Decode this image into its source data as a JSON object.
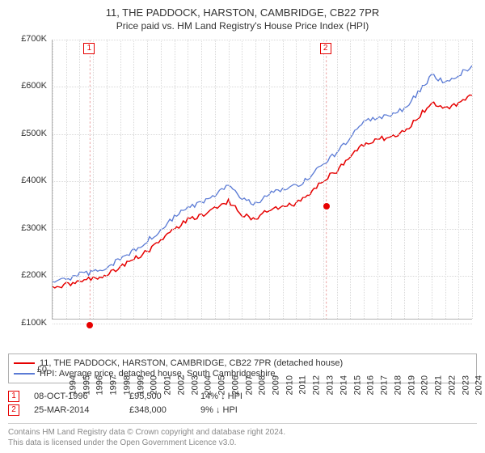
{
  "title": "11, THE PADDOCK, HARSTON, CAMBRIDGE, CB22 7PR",
  "subtitle": "Price paid vs. HM Land Registry's House Price Index (HPI)",
  "chart": {
    "type": "line",
    "background_color": "#ffffff",
    "grid_color": "#d8d8d8",
    "axis_color": "#b0b0b0",
    "x_years": [
      1994,
      1995,
      1996,
      1997,
      1998,
      1999,
      2000,
      2001,
      2002,
      2003,
      2004,
      2005,
      2006,
      2007,
      2008,
      2009,
      2010,
      2011,
      2012,
      2013,
      2014,
      2015,
      2016,
      2017,
      2018,
      2019,
      2020,
      2021,
      2022,
      2023,
      2024,
      2025
    ],
    "ylim": [
      0,
      700000
    ],
    "ytick_step": 100000,
    "yticks_fmt": [
      "£0",
      "£100K",
      "£200K",
      "£300K",
      "£400K",
      "£500K",
      "£600K",
      "£700K"
    ],
    "series": [
      {
        "id": "price_paid",
        "label": "11, THE PADDOCK, HARSTON, CAMBRIDGE, CB22 7PR (detached house)",
        "color": "#e60000",
        "line_width": 1.6,
        "years": [
          1994,
          1995,
          1996,
          1997,
          1998,
          1999,
          2000,
          2001,
          2002,
          2003,
          2004,
          2005,
          2006,
          2007,
          2008,
          2009,
          2010,
          2011,
          2012,
          2013,
          2014,
          2015,
          2016,
          2017,
          2018,
          2019,
          2020,
          2021,
          2022,
          2023,
          2024,
          2025
        ],
        "values": [
          80000,
          85000,
          95000,
          100000,
          112000,
          128000,
          150000,
          168000,
          198000,
          225000,
          248000,
          260000,
          278000,
          295000,
          260000,
          250000,
          275000,
          278000,
          290000,
          310000,
          348000,
          370000,
          410000,
          438000,
          450000,
          455000,
          470000,
          505000,
          542000,
          528000,
          540000,
          560000
        ]
      },
      {
        "id": "hpi",
        "label": "HPI: Average price, detached house, South Cambridgeshire",
        "color": "#5b7bd5",
        "line_width": 1.4,
        "years": [
          1994,
          1995,
          1996,
          1997,
          1998,
          1999,
          2000,
          2001,
          2002,
          2003,
          2004,
          2005,
          2006,
          2007,
          2008,
          2009,
          2010,
          2011,
          2012,
          2013,
          2014,
          2015,
          2016,
          2017,
          2018,
          2019,
          2020,
          2021,
          2022,
          2023,
          2024,
          2025
        ],
        "values": [
          92000,
          96000,
          110000,
          118000,
          130000,
          148000,
          172000,
          195000,
          225000,
          255000,
          280000,
          292000,
          312000,
          335000,
          300000,
          288000,
          318000,
          322000,
          332000,
          355000,
          388000,
          415000,
          455000,
          492000,
          505000,
          512000,
          528000,
          568000,
          610000,
          595000,
          610000,
          635000
        ]
      }
    ],
    "sale_markers": [
      {
        "num": "1",
        "year": 1996.77,
        "price": 95500
      },
      {
        "num": "2",
        "year": 2014.23,
        "price": 348000
      }
    ]
  },
  "legend": [
    {
      "color": "#e60000",
      "label": "11, THE PADDOCK, HARSTON, CAMBRIDGE, CB22 7PR (detached house)"
    },
    {
      "color": "#5b7bd5",
      "label": "HPI: Average price, detached house, South Cambridgeshire"
    }
  ],
  "sales": [
    {
      "num": "1",
      "date": "08-OCT-1996",
      "price": "£95,500",
      "diff": "14% ↓ HPI"
    },
    {
      "num": "2",
      "date": "25-MAR-2014",
      "price": "£348,000",
      "diff": "9% ↓ HPI"
    }
  ],
  "footnote_l1": "Contains HM Land Registry data © Crown copyright and database right 2024.",
  "footnote_l2": "This data is licensed under the Open Government Licence v3.0."
}
